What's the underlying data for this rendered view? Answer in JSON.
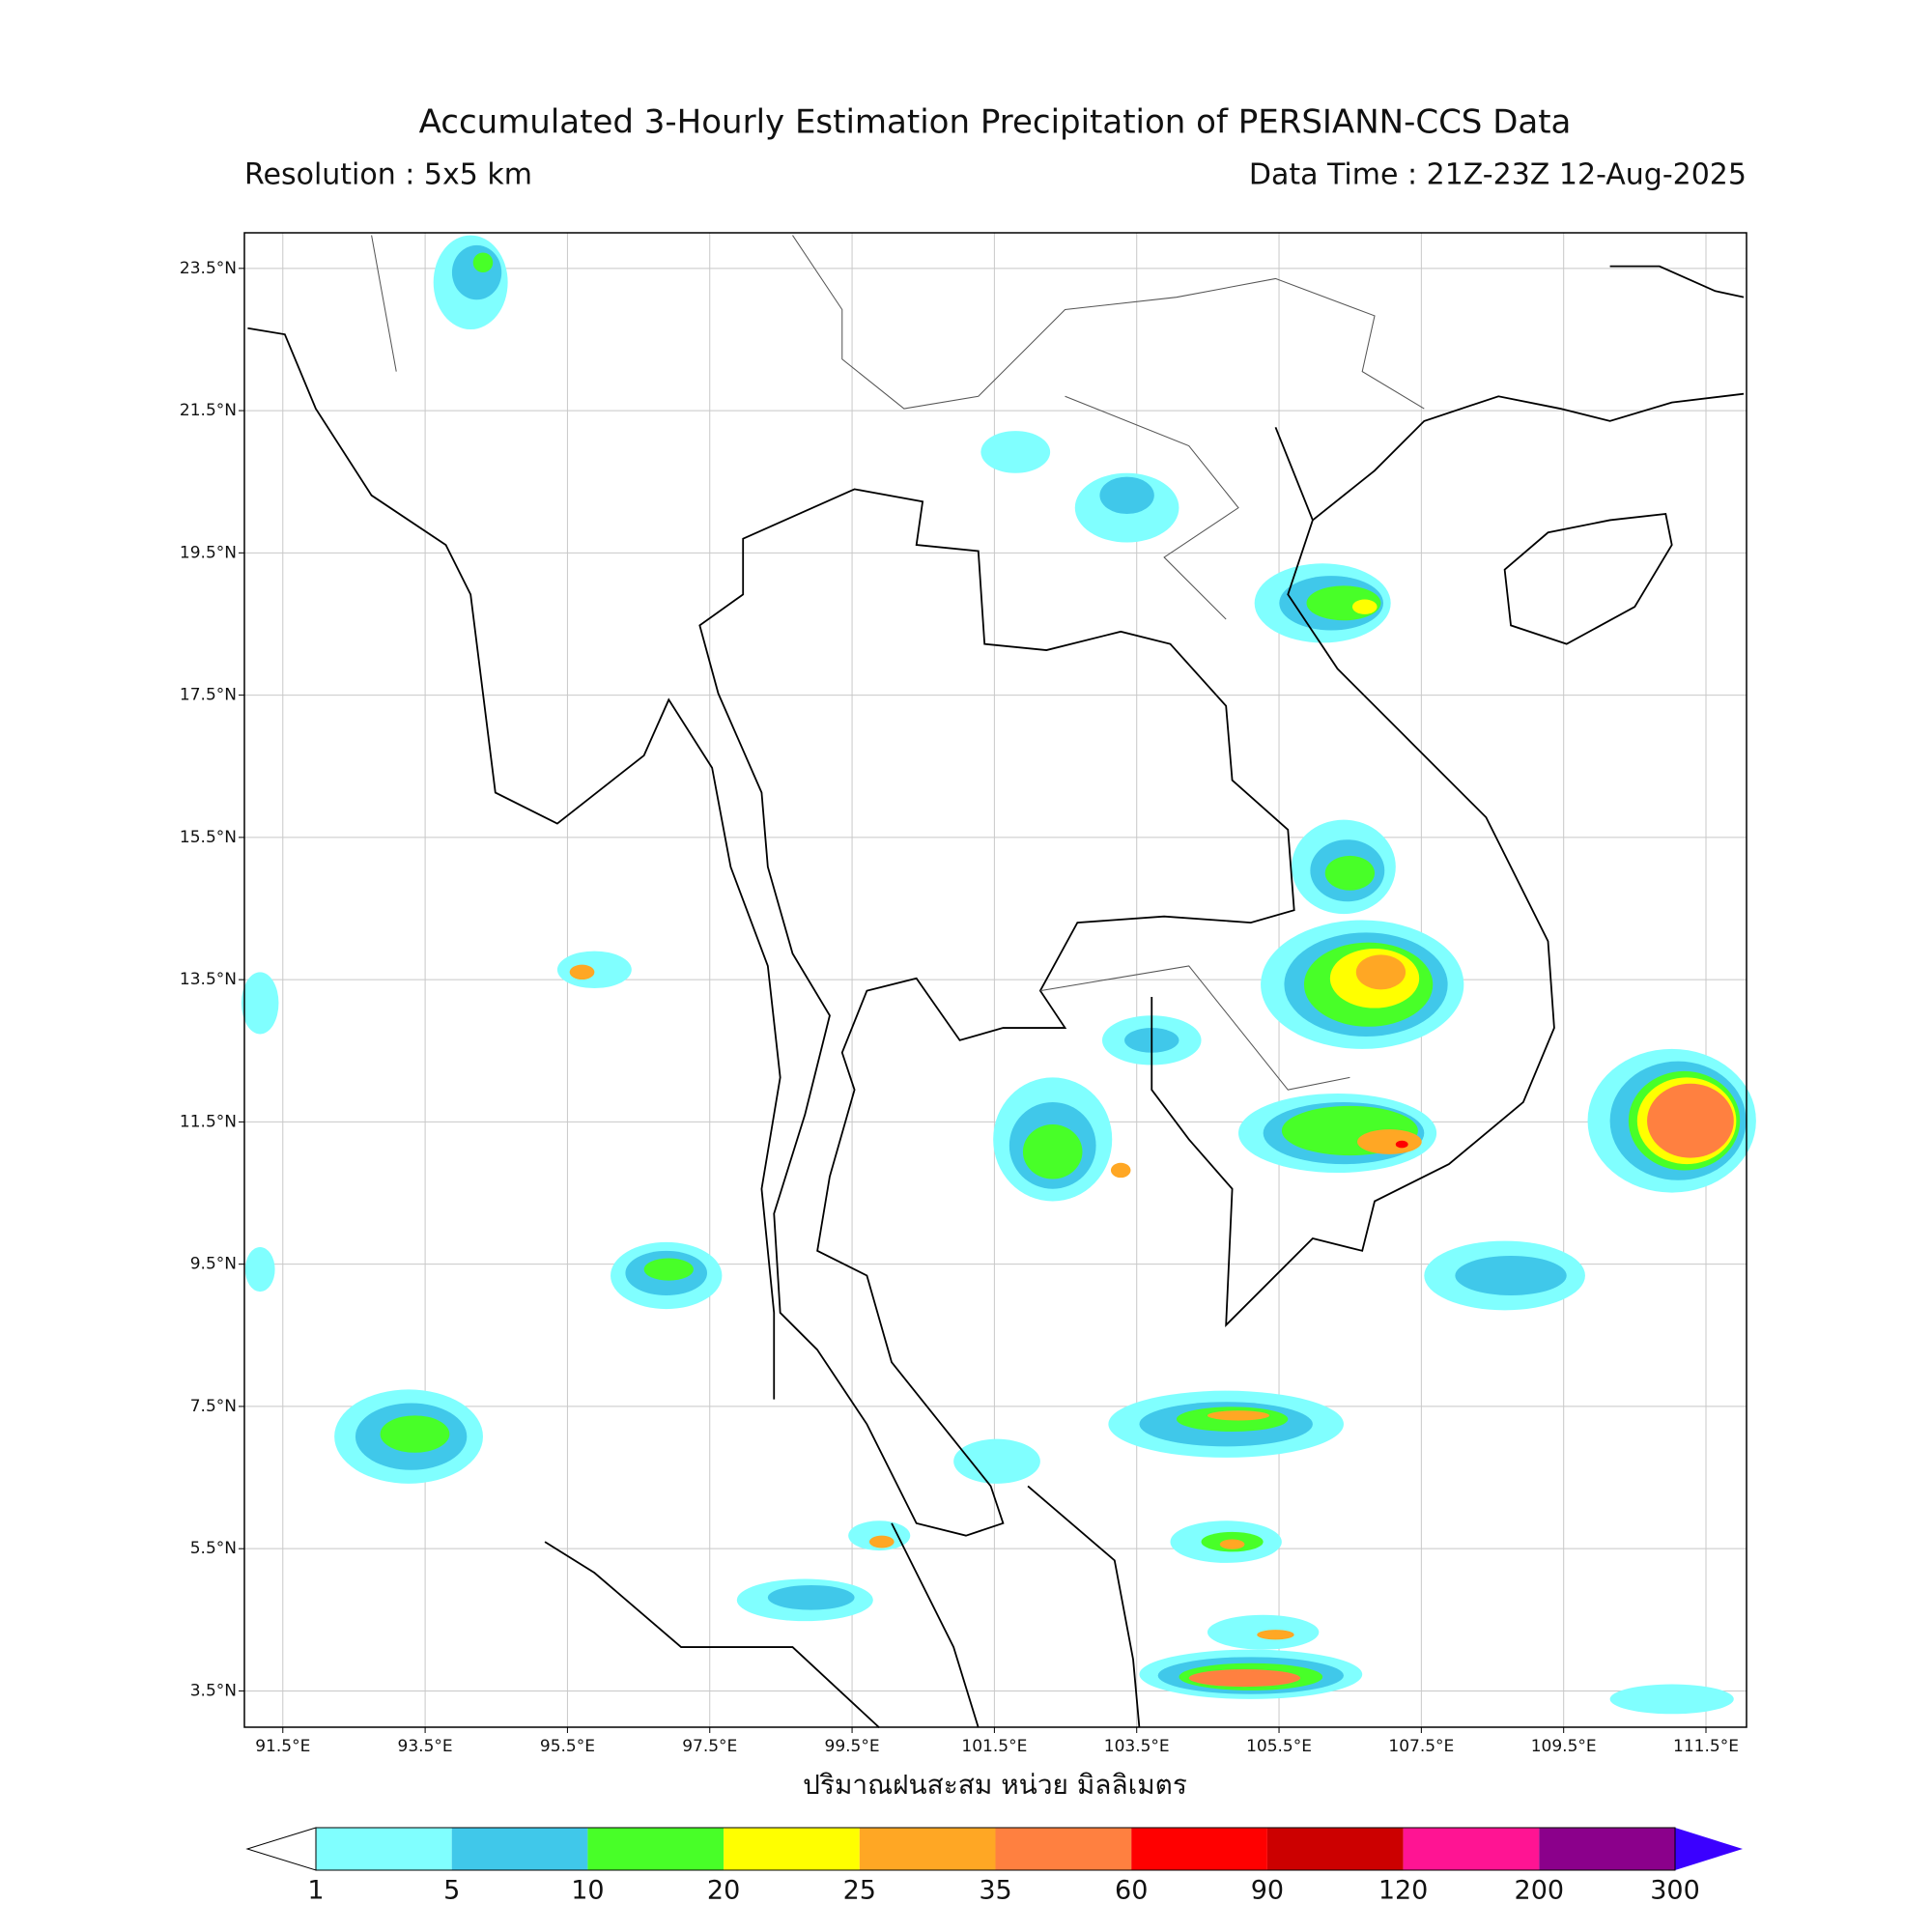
{
  "title": "Accumulated 3-Hourly Estimation Precipitation of PERSIANN-CCS Data",
  "resolution": "Resolution : 5x5 km",
  "data_time": "Data Time : 21Z-23Z 12-Aug-2025",
  "x_label": "ปริมาณฝนสะสม หน่วย มิลลิเมตร",
  "map": {
    "lonlim": [
      90.96,
      112.07
    ],
    "latlim": [
      2.99,
      24.0
    ],
    "grid": true,
    "lon_ticks": [
      {
        "value": 91.5,
        "label": "91.5°E"
      },
      {
        "value": 93.5,
        "label": "93.5°E"
      },
      {
        "value": 95.5,
        "label": "95.5°E"
      },
      {
        "value": 97.5,
        "label": "97.5°E"
      },
      {
        "value": 99.5,
        "label": "99.5°E"
      },
      {
        "value": 101.5,
        "label": "101.5°E"
      },
      {
        "value": 103.5,
        "label": "103.5°E"
      },
      {
        "value": 105.5,
        "label": "105.5°E"
      },
      {
        "value": 107.5,
        "label": "107.5°E"
      },
      {
        "value": 109.5,
        "label": "109.5°E"
      },
      {
        "value": 111.5,
        "label": "111.5°E"
      }
    ],
    "lat_ticks": [
      {
        "value": 23.5,
        "label": "23.5°N"
      },
      {
        "value": 21.5,
        "label": "21.5°N"
      },
      {
        "value": 19.5,
        "label": "19.5°N"
      },
      {
        "value": 17.5,
        "label": "17.5°N"
      },
      {
        "value": 15.5,
        "label": "15.5°N"
      },
      {
        "value": 13.5,
        "label": "13.5°N"
      },
      {
        "value": 11.5,
        "label": "11.5°N"
      },
      {
        "value": 9.5,
        "label": "9.5°N"
      },
      {
        "value": 7.5,
        "label": "7.5°N"
      },
      {
        "value": 5.5,
        "label": "5.5°N"
      },
      {
        "value": 3.5,
        "label": "3.5°N"
      }
    ]
  },
  "colorbar": {
    "levels": [
      1,
      5,
      10,
      20,
      25,
      35,
      60,
      90,
      120,
      200,
      300
    ],
    "colors": [
      "#80ffff",
      "#40c8ea",
      "#48ff28",
      "#ffff00",
      "#ffa724",
      "#ff8040",
      "#ff0000",
      "#cc0000",
      "#ff1493",
      "#8b008b"
    ],
    "under_color": "#ffffff",
    "over_color": "#3b00ff"
  }
}
